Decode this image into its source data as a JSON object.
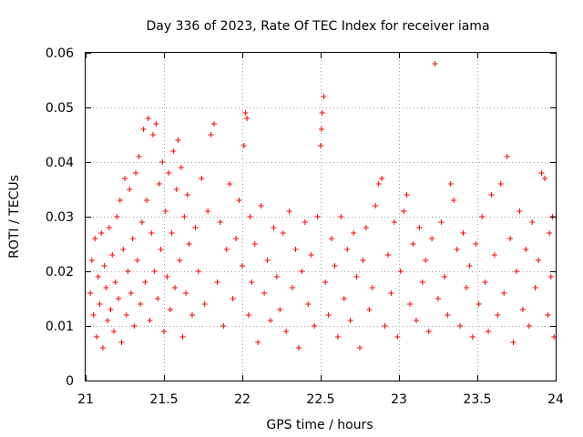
{
  "chart_data": {
    "type": "scatter",
    "title": "Day 336 of 2023, Rate Of TEC Index for receiver iama",
    "xlabel": "GPS time / hours",
    "ylabel": "ROTI / TECUs",
    "xlim": [
      21,
      24
    ],
    "ylim": [
      0,
      0.06
    ],
    "x_ticks": [
      21,
      21.5,
      22,
      22.5,
      23,
      23.5,
      24
    ],
    "x_tick_labels": [
      "21",
      "21.5",
      "22",
      "22.5",
      "23",
      "23.5",
      "24"
    ],
    "y_ticks": [
      0,
      0.01,
      0.02,
      0.03,
      0.04,
      0.05,
      0.06
    ],
    "y_tick_labels": [
      "0",
      "0.01",
      "0.02",
      "0.03",
      "0.04",
      "0.05",
      "0.06"
    ],
    "grid": true,
    "marker": "+",
    "marker_color": "#ff0000",
    "series": [
      {
        "name": "ROTI",
        "points": [
          [
            21.03,
            0.016
          ],
          [
            21.04,
            0.022
          ],
          [
            21.05,
            0.012
          ],
          [
            21.06,
            0.026
          ],
          [
            21.07,
            0.008
          ],
          [
            21.08,
            0.019
          ],
          [
            21.09,
            0.014
          ],
          [
            21.1,
            0.027
          ],
          [
            21.11,
            0.006
          ],
          [
            21.12,
            0.021
          ],
          [
            21.13,
            0.017
          ],
          [
            21.14,
            0.011
          ],
          [
            21.15,
            0.028
          ],
          [
            21.16,
            0.013
          ],
          [
            21.17,
            0.023
          ],
          [
            21.18,
            0.009
          ],
          [
            21.19,
            0.018
          ],
          [
            21.2,
            0.03
          ],
          [
            21.21,
            0.015
          ],
          [
            21.22,
            0.033
          ],
          [
            21.23,
            0.007
          ],
          [
            21.24,
            0.024
          ],
          [
            21.25,
            0.037
          ],
          [
            21.26,
            0.012
          ],
          [
            21.27,
            0.02
          ],
          [
            21.28,
            0.035
          ],
          [
            21.29,
            0.016
          ],
          [
            21.3,
            0.026
          ],
          [
            21.31,
            0.01
          ],
          [
            21.32,
            0.038
          ],
          [
            21.33,
            0.022
          ],
          [
            21.34,
            0.041
          ],
          [
            21.35,
            0.014
          ],
          [
            21.36,
            0.029
          ],
          [
            21.37,
            0.046
          ],
          [
            21.38,
            0.018
          ],
          [
            21.39,
            0.033
          ],
          [
            21.4,
            0.048
          ],
          [
            21.41,
            0.011
          ],
          [
            21.42,
            0.027
          ],
          [
            21.43,
            0.045
          ],
          [
            21.44,
            0.02
          ],
          [
            21.45,
            0.047
          ],
          [
            21.46,
            0.015
          ],
          [
            21.47,
            0.036
          ],
          [
            21.48,
            0.024
          ],
          [
            21.49,
            0.04
          ],
          [
            21.5,
            0.009
          ],
          [
            21.51,
            0.031
          ],
          [
            21.52,
            0.019
          ],
          [
            21.53,
            0.038
          ],
          [
            21.54,
            0.013
          ],
          [
            21.55,
            0.027
          ],
          [
            21.56,
            0.042
          ],
          [
            21.57,
            0.017
          ],
          [
            21.58,
            0.035
          ],
          [
            21.59,
            0.044
          ],
          [
            21.6,
            0.022
          ],
          [
            21.61,
            0.039
          ],
          [
            21.62,
            0.008
          ],
          [
            21.63,
            0.03
          ],
          [
            21.64,
            0.016
          ],
          [
            21.65,
            0.034
          ],
          [
            21.66,
            0.025
          ],
          [
            21.68,
            0.012
          ],
          [
            21.7,
            0.028
          ],
          [
            21.72,
            0.02
          ],
          [
            21.74,
            0.037
          ],
          [
            21.76,
            0.014
          ],
          [
            21.78,
            0.031
          ],
          [
            21.8,
            0.045
          ],
          [
            21.82,
            0.047
          ],
          [
            21.84,
            0.018
          ],
          [
            21.86,
            0.029
          ],
          [
            21.88,
            0.01
          ],
          [
            21.9,
            0.024
          ],
          [
            21.92,
            0.036
          ],
          [
            21.94,
            0.015
          ],
          [
            21.96,
            0.026
          ],
          [
            21.98,
            0.033
          ],
          [
            22.0,
            0.021
          ],
          [
            22.01,
            0.043
          ],
          [
            22.02,
            0.049
          ],
          [
            22.03,
            0.048
          ],
          [
            22.04,
            0.012
          ],
          [
            22.05,
            0.03
          ],
          [
            22.06,
            0.018
          ],
          [
            22.08,
            0.025
          ],
          [
            22.1,
            0.007
          ],
          [
            22.12,
            0.032
          ],
          [
            22.14,
            0.016
          ],
          [
            22.16,
            0.022
          ],
          [
            22.18,
            0.011
          ],
          [
            22.2,
            0.028
          ],
          [
            22.22,
            0.019
          ],
          [
            22.24,
            0.013
          ],
          [
            22.26,
            0.027
          ],
          [
            22.28,
            0.009
          ],
          [
            22.3,
            0.031
          ],
          [
            22.32,
            0.017
          ],
          [
            22.34,
            0.024
          ],
          [
            22.36,
            0.006
          ],
          [
            22.38,
            0.02
          ],
          [
            22.4,
            0.029
          ],
          [
            22.42,
            0.014
          ],
          [
            22.44,
            0.023
          ],
          [
            22.46,
            0.01
          ],
          [
            22.48,
            0.03
          ],
          [
            22.5,
            0.043
          ],
          [
            22.505,
            0.046
          ],
          [
            22.51,
            0.049
          ],
          [
            22.52,
            0.052
          ],
          [
            22.53,
            0.018
          ],
          [
            22.55,
            0.012
          ],
          [
            22.57,
            0.026
          ],
          [
            22.59,
            0.021
          ],
          [
            22.61,
            0.008
          ],
          [
            22.63,
            0.03
          ],
          [
            22.65,
            0.015
          ],
          [
            22.67,
            0.024
          ],
          [
            22.69,
            0.011
          ],
          [
            22.71,
            0.027
          ],
          [
            22.73,
            0.019
          ],
          [
            22.75,
            0.006
          ],
          [
            22.77,
            0.022
          ],
          [
            22.79,
            0.028
          ],
          [
            22.81,
            0.013
          ],
          [
            22.83,
            0.017
          ],
          [
            22.85,
            0.032
          ],
          [
            22.87,
            0.036
          ],
          [
            22.89,
            0.037
          ],
          [
            22.91,
            0.01
          ],
          [
            22.93,
            0.023
          ],
          [
            22.95,
            0.016
          ],
          [
            22.97,
            0.029
          ],
          [
            22.99,
            0.008
          ],
          [
            23.01,
            0.02
          ],
          [
            23.03,
            0.031
          ],
          [
            23.05,
            0.034
          ],
          [
            23.07,
            0.014
          ],
          [
            23.09,
            0.025
          ],
          [
            23.11,
            0.011
          ],
          [
            23.13,
            0.028
          ],
          [
            23.15,
            0.018
          ],
          [
            23.17,
            0.022
          ],
          [
            23.19,
            0.009
          ],
          [
            23.21,
            0.026
          ],
          [
            23.23,
            0.058
          ],
          [
            23.25,
            0.015
          ],
          [
            23.27,
            0.029
          ],
          [
            23.29,
            0.019
          ],
          [
            23.31,
            0.012
          ],
          [
            23.33,
            0.036
          ],
          [
            23.35,
            0.033
          ],
          [
            23.37,
            0.024
          ],
          [
            23.39,
            0.01
          ],
          [
            23.41,
            0.027
          ],
          [
            23.43,
            0.017
          ],
          [
            23.45,
            0.021
          ],
          [
            23.47,
            0.008
          ],
          [
            23.49,
            0.025
          ],
          [
            23.51,
            0.014
          ],
          [
            23.53,
            0.03
          ],
          [
            23.55,
            0.018
          ],
          [
            23.57,
            0.009
          ],
          [
            23.59,
            0.034
          ],
          [
            23.61,
            0.023
          ],
          [
            23.63,
            0.012
          ],
          [
            23.65,
            0.036
          ],
          [
            23.67,
            0.016
          ],
          [
            23.69,
            0.041
          ],
          [
            23.71,
            0.026
          ],
          [
            23.73,
            0.007
          ],
          [
            23.75,
            0.02
          ],
          [
            23.77,
            0.031
          ],
          [
            23.79,
            0.013
          ],
          [
            23.81,
            0.024
          ],
          [
            23.83,
            0.01
          ],
          [
            23.85,
            0.029
          ],
          [
            23.87,
            0.017
          ],
          [
            23.89,
            0.022
          ],
          [
            23.91,
            0.038
          ],
          [
            23.93,
            0.037
          ],
          [
            23.95,
            0.012
          ],
          [
            23.96,
            0.027
          ],
          [
            23.97,
            0.019
          ],
          [
            23.98,
            0.03
          ],
          [
            23.99,
            0.008
          ]
        ]
      }
    ]
  }
}
